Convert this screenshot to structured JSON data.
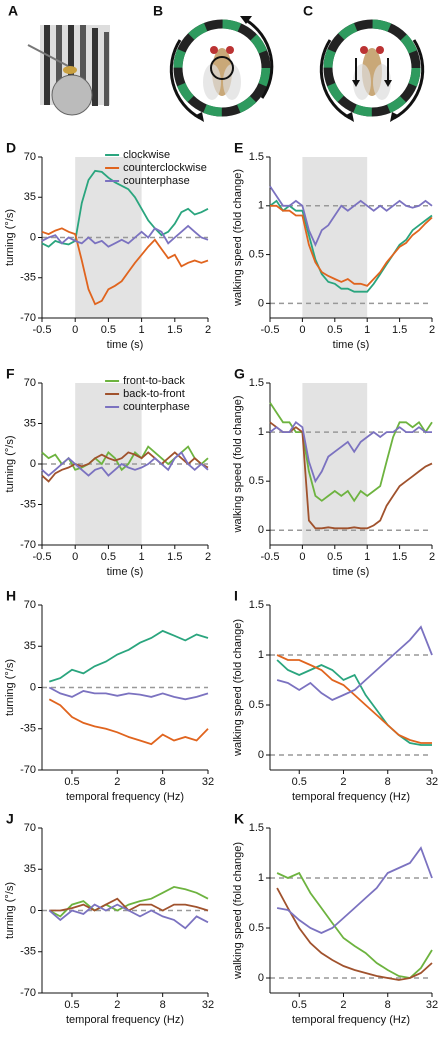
{
  "illustrations": {
    "labels": [
      "A",
      "B",
      "C"
    ]
  },
  "chart_data": [
    {
      "type": "line",
      "label": "D",
      "ylabel": "turning (°/s)",
      "xlabel": "time (s)",
      "x": [
        -0.5,
        -0.4,
        -0.3,
        -0.2,
        -0.1,
        0,
        0.1,
        0.2,
        0.3,
        0.4,
        0.5,
        0.6,
        0.7,
        0.8,
        0.9,
        1,
        1.1,
        1.2,
        1.3,
        1.4,
        1.5,
        1.6,
        1.7,
        1.8,
        1.9,
        2
      ],
      "xlim": [
        -0.5,
        2
      ],
      "xticks": [
        -0.5,
        0,
        0.5,
        1,
        1.5,
        2
      ],
      "ylim": [
        -70,
        70
      ],
      "yticks": [
        -70,
        -35,
        0,
        35,
        70
      ],
      "shaded_interval": [
        0,
        1
      ],
      "reference_lines": [
        0
      ],
      "legend": "upper right",
      "series": [
        {
          "name": "clockwise",
          "color": "#2aa57e",
          "values": [
            -5,
            -8,
            -3,
            -5,
            -6,
            -3,
            30,
            50,
            58,
            57,
            52,
            48,
            45,
            42,
            35,
            25,
            15,
            8,
            2,
            5,
            12,
            22,
            25,
            20,
            22,
            25
          ]
        },
        {
          "name": "counterclockwise",
          "color": "#e0641e",
          "values": [
            5,
            3,
            6,
            8,
            5,
            3,
            -20,
            -45,
            -58,
            -55,
            -45,
            -42,
            -38,
            -30,
            -22,
            -15,
            -8,
            -2,
            -10,
            -18,
            -15,
            -25,
            -22,
            -20,
            -22,
            -20
          ]
        },
        {
          "name": "counterphase",
          "color": "#7b72c0",
          "values": [
            -3,
            0,
            2,
            -5,
            0,
            -3,
            -5,
            0,
            -5,
            -3,
            -8,
            -5,
            -2,
            -5,
            0,
            5,
            0,
            8,
            5,
            -5,
            0,
            5,
            10,
            5,
            0,
            -2
          ]
        }
      ]
    },
    {
      "type": "line",
      "label": "E",
      "ylabel": "walking speed (fold change)",
      "xlabel": "time (s)",
      "x": [
        -0.5,
        -0.4,
        -0.3,
        -0.2,
        -0.1,
        0,
        0.1,
        0.2,
        0.3,
        0.4,
        0.5,
        0.6,
        0.7,
        0.8,
        0.9,
        1,
        1.1,
        1.2,
        1.3,
        1.4,
        1.5,
        1.6,
        1.7,
        1.8,
        1.9,
        2
      ],
      "xlim": [
        -0.5,
        2
      ],
      "xticks": [
        -0.5,
        0,
        0.5,
        1,
        1.5,
        2
      ],
      "ylim": [
        -0.15,
        1.5
      ],
      "yticks": [
        0,
        0.5,
        1,
        1.5
      ],
      "shaded_interval": [
        0,
        1
      ],
      "reference_lines": [
        0,
        1
      ],
      "series": [
        {
          "color": "#2aa57e",
          "values": [
            1,
            1.05,
            0.95,
            1,
            0.95,
            0.95,
            0.7,
            0.45,
            0.3,
            0.22,
            0.2,
            0.15,
            0.15,
            0.12,
            0.12,
            0.12,
            0.2,
            0.3,
            0.4,
            0.5,
            0.6,
            0.65,
            0.75,
            0.8,
            0.85,
            0.9
          ]
        },
        {
          "color": "#e0641e",
          "values": [
            1,
            1,
            0.95,
            0.95,
            0.9,
            0.9,
            0.6,
            0.42,
            0.32,
            0.28,
            0.25,
            0.22,
            0.25,
            0.2,
            0.2,
            0.18,
            0.25,
            0.32,
            0.42,
            0.5,
            0.58,
            0.62,
            0.7,
            0.75,
            0.82,
            0.88
          ]
        },
        {
          "color": "#7b72c0",
          "values": [
            1.2,
            1.1,
            1,
            1,
            1.05,
            1,
            0.75,
            0.6,
            0.75,
            0.8,
            0.9,
            1,
            0.95,
            1,
            1.05,
            1,
            0.95,
            1,
            0.95,
            1,
            1.05,
            1,
            0.98,
            1,
            1.05,
            1
          ]
        }
      ]
    },
    {
      "type": "line",
      "label": "F",
      "ylabel": "turning (°/s)",
      "xlabel": "time (s)",
      "x": [
        -0.5,
        -0.4,
        -0.3,
        -0.2,
        -0.1,
        0,
        0.1,
        0.2,
        0.3,
        0.4,
        0.5,
        0.6,
        0.7,
        0.8,
        0.9,
        1,
        1.1,
        1.2,
        1.3,
        1.4,
        1.5,
        1.6,
        1.7,
        1.8,
        1.9,
        2
      ],
      "xlim": [
        -0.5,
        2
      ],
      "xticks": [
        -0.5,
        0,
        0.5,
        1,
        1.5,
        2
      ],
      "ylim": [
        -70,
        70
      ],
      "yticks": [
        -70,
        -35,
        0,
        35,
        70
      ],
      "shaded_interval": [
        0,
        1
      ],
      "reference_lines": [
        0
      ],
      "legend": "upper right",
      "series": [
        {
          "name": "front-to-back",
          "color": "#6db33f",
          "values": [
            10,
            5,
            8,
            0,
            5,
            -5,
            -3,
            0,
            5,
            0,
            10,
            5,
            -5,
            0,
            10,
            5,
            15,
            10,
            5,
            0,
            5,
            10,
            15,
            5,
            0,
            5
          ]
        },
        {
          "name": "back-to-front",
          "color": "#a0522d",
          "values": [
            -10,
            -15,
            -8,
            -5,
            -3,
            0,
            -2,
            0,
            5,
            8,
            5,
            3,
            5,
            10,
            8,
            5,
            10,
            5,
            0,
            5,
            10,
            5,
            0,
            5,
            0,
            -3
          ]
        },
        {
          "name": "counterphase",
          "color": "#7b72c0",
          "values": [
            -5,
            -10,
            -5,
            0,
            5,
            0,
            -5,
            -10,
            -5,
            -3,
            -10,
            -5,
            0,
            -3,
            -5,
            -3,
            0,
            5,
            0,
            -5,
            5,
            10,
            0,
            -5,
            0,
            -5
          ]
        }
      ]
    },
    {
      "type": "line",
      "label": "G",
      "ylabel": "walking speed (fold change)",
      "xlabel": "time (s)",
      "x": [
        -0.5,
        -0.4,
        -0.3,
        -0.2,
        -0.1,
        0,
        0.1,
        0.2,
        0.3,
        0.4,
        0.5,
        0.6,
        0.7,
        0.8,
        0.9,
        1,
        1.1,
        1.2,
        1.3,
        1.4,
        1.5,
        1.6,
        1.7,
        1.8,
        1.9,
        2
      ],
      "xlim": [
        -0.5,
        2
      ],
      "xticks": [
        -0.5,
        0,
        0.5,
        1,
        1.5,
        2
      ],
      "ylim": [
        -0.15,
        1.5
      ],
      "yticks": [
        0,
        0.5,
        1,
        1.5
      ],
      "shaded_interval": [
        0,
        1
      ],
      "reference_lines": [
        0,
        1
      ],
      "series": [
        {
          "color": "#6db33f",
          "values": [
            1.3,
            1.2,
            1.1,
            1.1,
            1,
            1,
            0.6,
            0.35,
            0.3,
            0.35,
            0.4,
            0.35,
            0.4,
            0.3,
            0.4,
            0.35,
            0.4,
            0.45,
            0.7,
            0.95,
            1.1,
            1.1,
            1.05,
            1.1,
            1,
            1.1
          ]
        },
        {
          "color": "#a0522d",
          "values": [
            1.1,
            1.05,
            1,
            1,
            1.05,
            1,
            0.1,
            0.02,
            0.02,
            0.03,
            0.02,
            0.02,
            0.02,
            0.03,
            0.02,
            0.02,
            0.05,
            0.1,
            0.25,
            0.35,
            0.45,
            0.5,
            0.55,
            0.6,
            0.65,
            0.68
          ]
        },
        {
          "color": "#7b72c0",
          "values": [
            1,
            1.05,
            1,
            1,
            1.1,
            1.05,
            0.7,
            0.5,
            0.6,
            0.75,
            0.8,
            0.85,
            0.9,
            0.8,
            0.9,
            0.95,
            1,
            0.95,
            1,
            1,
            1.05,
            1,
            1,
            1.05,
            1,
            1
          ]
        }
      ]
    },
    {
      "type": "line",
      "label": "H",
      "ylabel": "turning (°/s)",
      "xlabel": "temporal frequency (Hz)",
      "xscale": "log",
      "x": [
        0.25,
        0.35,
        0.5,
        0.71,
        1,
        1.41,
        2,
        2.83,
        4,
        5.66,
        8,
        11.3,
        16,
        22.6,
        32
      ],
      "xlim": [
        0.2,
        32
      ],
      "xticks": [
        0.5,
        2,
        8,
        32
      ],
      "ylim": [
        -70,
        70
      ],
      "yticks": [
        -70,
        -35,
        0,
        35,
        70
      ],
      "reference_lines": [
        0
      ],
      "series": [
        {
          "color": "#2aa57e",
          "values": [
            5,
            8,
            15,
            12,
            18,
            22,
            28,
            32,
            38,
            42,
            48,
            44,
            40,
            45,
            42
          ]
        },
        {
          "color": "#e0641e",
          "values": [
            -10,
            -15,
            -25,
            -30,
            -33,
            -35,
            -38,
            -42,
            -45,
            -48,
            -40,
            -45,
            -42,
            -45,
            -35
          ]
        },
        {
          "color": "#7b72c0",
          "values": [
            0,
            -5,
            -8,
            -3,
            -5,
            -5,
            -7,
            -5,
            -6,
            -8,
            -5,
            -8,
            -10,
            -8,
            -5
          ]
        }
      ]
    },
    {
      "type": "line",
      "label": "I",
      "ylabel": "walking speed (fold change)",
      "xlabel": "temporal frequency (Hz)",
      "xscale": "log",
      "x": [
        0.25,
        0.35,
        0.5,
        0.71,
        1,
        1.41,
        2,
        2.83,
        4,
        5.66,
        8,
        11.3,
        16,
        22.6,
        32
      ],
      "xlim": [
        0.2,
        32
      ],
      "xticks": [
        0.5,
        2,
        8,
        32
      ],
      "ylim": [
        -0.15,
        1.5
      ],
      "yticks": [
        0,
        0.5,
        1,
        1.5
      ],
      "reference_lines": [
        0,
        1
      ],
      "series": [
        {
          "color": "#2aa57e",
          "values": [
            0.95,
            0.85,
            0.8,
            0.85,
            0.9,
            0.85,
            0.75,
            0.8,
            0.6,
            0.45,
            0.3,
            0.2,
            0.12,
            0.1,
            0.1
          ]
        },
        {
          "color": "#e0641e",
          "values": [
            1,
            0.95,
            0.95,
            0.9,
            0.85,
            0.75,
            0.7,
            0.6,
            0.5,
            0.4,
            0.3,
            0.2,
            0.15,
            0.12,
            0.12
          ]
        },
        {
          "color": "#7b72c0",
          "values": [
            0.75,
            0.72,
            0.65,
            0.72,
            0.62,
            0.55,
            0.6,
            0.65,
            0.75,
            0.85,
            0.95,
            1.05,
            1.15,
            1.28,
            1
          ]
        }
      ]
    },
    {
      "type": "line",
      "label": "J",
      "ylabel": "turning (°/s)",
      "xlabel": "temporal frequency (Hz)",
      "xscale": "log",
      "x": [
        0.25,
        0.35,
        0.5,
        0.71,
        1,
        1.41,
        2,
        2.83,
        4,
        5.66,
        8,
        11.3,
        16,
        22.6,
        32
      ],
      "xlim": [
        0.2,
        32
      ],
      "xticks": [
        0.5,
        2,
        8,
        32
      ],
      "ylim": [
        -70,
        70
      ],
      "yticks": [
        -70,
        -35,
        0,
        35,
        70
      ],
      "reference_lines": [
        0
      ],
      "series": [
        {
          "color": "#6db33f",
          "values": [
            0,
            -5,
            5,
            8,
            0,
            5,
            0,
            5,
            8,
            10,
            15,
            20,
            18,
            15,
            10
          ]
        },
        {
          "color": "#a0522d",
          "values": [
            0,
            0,
            2,
            5,
            0,
            5,
            10,
            0,
            5,
            5,
            0,
            5,
            5,
            3,
            0
          ]
        },
        {
          "color": "#7b72c0",
          "values": [
            0,
            -8,
            0,
            -3,
            5,
            0,
            5,
            0,
            -5,
            0,
            -5,
            -8,
            -15,
            -5,
            -10
          ]
        }
      ]
    },
    {
      "type": "line",
      "label": "K",
      "ylabel": "walking speed (fold change)",
      "xlabel": "temporal frequency (Hz)",
      "xscale": "log",
      "x": [
        0.25,
        0.35,
        0.5,
        0.71,
        1,
        1.41,
        2,
        2.83,
        4,
        5.66,
        8,
        11.3,
        16,
        22.6,
        32
      ],
      "xlim": [
        0.2,
        32
      ],
      "xticks": [
        0.5,
        2,
        8,
        32
      ],
      "ylim": [
        -0.15,
        1.5
      ],
      "yticks": [
        0,
        0.5,
        1,
        1.5
      ],
      "reference_lines": [
        0,
        1
      ],
      "series": [
        {
          "color": "#6db33f",
          "values": [
            1.05,
            1,
            1.05,
            0.85,
            0.7,
            0.55,
            0.4,
            0.32,
            0.25,
            0.15,
            0.08,
            0.02,
            0,
            0.1,
            0.28
          ]
        },
        {
          "color": "#a0522d",
          "values": [
            0.9,
            0.7,
            0.5,
            0.35,
            0.25,
            0.18,
            0.12,
            0.08,
            0.05,
            0.02,
            0,
            -0.02,
            0,
            0.05,
            0.15
          ]
        },
        {
          "color": "#7b72c0",
          "values": [
            0.7,
            0.68,
            0.58,
            0.5,
            0.45,
            0.5,
            0.6,
            0.7,
            0.8,
            0.9,
            1.05,
            1.1,
            1.15,
            1.3,
            1
          ]
        }
      ]
    }
  ]
}
